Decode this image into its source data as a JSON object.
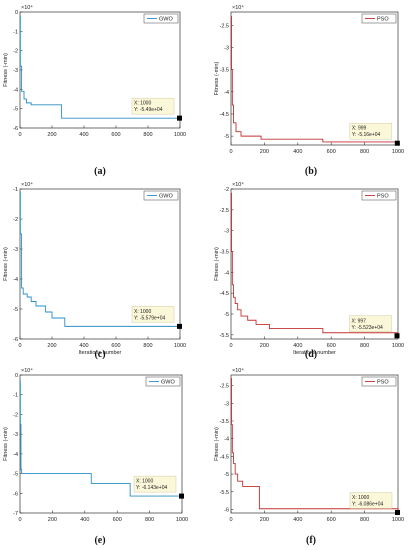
{
  "figure": {
    "captions": [
      "(a)",
      "(b)",
      "(c)",
      "(d)",
      "(e)",
      "(f)"
    ]
  },
  "chart_data": [
    {
      "type": "line",
      "panel": "(a)",
      "legend": "GWO",
      "color": "#2a8fc7",
      "ylabel": "Fitness (-min)",
      "xlabel": "",
      "exponent_label": "×10⁴",
      "xlim": [
        0,
        1000
      ],
      "ylim": [
        -6,
        0
      ],
      "xticks": [
        0,
        200,
        400,
        600,
        800,
        1000
      ],
      "yticks": [
        0,
        -1,
        -2,
        -3,
        -4,
        -5,
        -6
      ],
      "xtick_labels": [
        "0",
        "200",
        "400",
        "600",
        "800",
        "1000"
      ],
      "ytick_labels": [
        "0",
        "-1",
        "-2",
        "-3",
        "-4",
        "-5",
        "-6"
      ],
      "x": [
        0,
        2,
        10,
        25,
        40,
        70,
        260,
        1000
      ],
      "y": [
        -0.2,
        -2.8,
        -4.1,
        -4.5,
        -4.7,
        -4.8,
        -5.49,
        -5.49
      ],
      "datatip": {
        "x": 1000,
        "y": -5.49,
        "xtext": "X: 1000",
        "ytext": "Y: -5.49e+04"
      }
    },
    {
      "type": "line",
      "panel": "(b)",
      "legend": "PSO",
      "color": "#c43030",
      "ylabel": "Fitness (-min)",
      "xlabel": "",
      "exponent_label": "×10⁴",
      "xlim": [
        0,
        1000
      ],
      "ylim": [
        -5.2,
        -2.2
      ],
      "xticks": [
        0,
        200,
        400,
        600,
        800,
        1000
      ],
      "yticks": [
        -2.5,
        -3,
        -3.5,
        -4,
        -4.5,
        -5
      ],
      "xtick_labels": [
        "0",
        "200",
        "400",
        "600",
        "800",
        "1000"
      ],
      "ytick_labels": [
        "-2.5",
        "-3",
        "-3.5",
        "-4",
        "-4.5",
        "-5"
      ],
      "x": [
        0,
        3,
        8,
        15,
        30,
        60,
        180,
        550,
        999,
        1000
      ],
      "y": [
        -2.3,
        -3.5,
        -4.3,
        -4.7,
        -4.9,
        -5.0,
        -5.07,
        -5.13,
        -5.16,
        -5.16
      ],
      "datatip": {
        "x": 999,
        "y": -5.16,
        "xtext": "X: 999",
        "ytext": "Y: -5.16e+04"
      }
    },
    {
      "type": "line",
      "panel": "(c)",
      "legend": "GWO",
      "color": "#2a8fc7",
      "ylabel": "Fitness (-min)",
      "xlabel": "Iterations number",
      "exponent_label": "×10⁴",
      "xlim": [
        0,
        1000
      ],
      "ylim": [
        -6,
        -1
      ],
      "xticks": [
        0,
        200,
        400,
        600,
        800,
        1000
      ],
      "yticks": [
        -1,
        -2,
        -3,
        -4,
        -5,
        -6
      ],
      "xtick_labels": [
        "0",
        "200",
        "400",
        "600",
        "800",
        "1000"
      ],
      "ytick_labels": [
        "-1",
        "-2",
        "-3",
        "-4",
        "-5",
        "-6"
      ],
      "x": [
        0,
        2,
        10,
        20,
        45,
        70,
        100,
        160,
        200,
        280,
        1000
      ],
      "y": [
        -1.1,
        -2.5,
        -4.3,
        -4.5,
        -4.6,
        -4.75,
        -4.9,
        -5.1,
        -5.3,
        -5.579,
        -5.579
      ],
      "datatip": {
        "x": 1000,
        "y": -5.579,
        "xtext": "X: 1000",
        "ytext": "Y: -5.579e+04"
      }
    },
    {
      "type": "line",
      "panel": "(d)",
      "legend": "PSO",
      "color": "#c43030",
      "ylabel": "Fitness (-min)",
      "xlabel": "Iterations number",
      "exponent_label": "×10⁴",
      "xlim": [
        0,
        1000
      ],
      "ylim": [
        -5.6,
        -2
      ],
      "xticks": [
        0,
        200,
        400,
        600,
        800,
        1000
      ],
      "yticks": [
        -2,
        -2.5,
        -3,
        -3.5,
        -4,
        -4.5,
        -5,
        -5.5
      ],
      "xtick_labels": [
        "0",
        "200",
        "400",
        "600",
        "800",
        "1000"
      ],
      "ytick_labels": [
        "-2",
        "-2.5",
        "-3",
        "-3.5",
        "-4",
        "-4.5",
        "-5",
        "-5.5"
      ],
      "x": [
        0,
        3,
        8,
        15,
        25,
        40,
        60,
        100,
        150,
        230,
        550,
        997,
        1000
      ],
      "y": [
        -2.1,
        -3.5,
        -4.3,
        -4.6,
        -4.75,
        -4.9,
        -5.05,
        -5.15,
        -5.25,
        -5.35,
        -5.45,
        -5.523,
        -5.523
      ],
      "datatip": {
        "x": 997,
        "y": -5.523,
        "xtext": "X: 997",
        "ytext": "Y: -5.523e+04"
      }
    },
    {
      "type": "line",
      "panel": "(e)",
      "legend": "GWO",
      "color": "#2a8fc7",
      "ylabel": "Fitness (-min)",
      "xlabel": "",
      "exponent_label": "×10⁴",
      "xlim": [
        0,
        1000
      ],
      "ylim": [
        -7,
        0
      ],
      "xticks": [
        0,
        200,
        400,
        600,
        800,
        1000
      ],
      "yticks": [
        0,
        -1,
        -2,
        -3,
        -4,
        -5,
        -6,
        -7
      ],
      "xtick_labels": [
        "0",
        "200",
        "400",
        "600",
        "800",
        "1000"
      ],
      "ytick_labels": [
        "0",
        "-1",
        "-2",
        "-3",
        "-4",
        "-5",
        "-6",
        "-7"
      ],
      "x": [
        0,
        2,
        6,
        10,
        440,
        680,
        1000
      ],
      "y": [
        -0.3,
        -2.5,
        -4.8,
        -5.0,
        -5.5,
        -6.143,
        -6.143
      ],
      "datatip": {
        "x": 1000,
        "y": -6.143,
        "xtext": "X: 1000",
        "ytext": "Y: -6.143e+04"
      }
    },
    {
      "type": "line",
      "panel": "(f)",
      "legend": "PSO",
      "color": "#c43030",
      "ylabel": "Fitness (-min)",
      "xlabel": "",
      "exponent_label": "×10⁴",
      "xlim": [
        0,
        1000
      ],
      "ylim": [
        -6.1,
        -2.2
      ],
      "xticks": [
        0,
        200,
        400,
        600,
        800,
        1000
      ],
      "yticks": [
        -2.5,
        -3,
        -3.5,
        -4,
        -4.5,
        -5,
        -5.5,
        -6
      ],
      "xtick_labels": [
        "0",
        "200",
        "400",
        "600",
        "800",
        "1000"
      ],
      "ytick_labels": [
        "-2.5",
        "-3",
        "-3.5",
        "-4",
        "-4.5",
        "-5",
        "-5.5",
        "-6"
      ],
      "x": [
        0,
        3,
        8,
        15,
        25,
        40,
        70,
        170,
        1000
      ],
      "y": [
        -2.3,
        -3.6,
        -4.4,
        -4.7,
        -5.0,
        -5.2,
        -5.35,
        -5.98,
        -6.086
      ],
      "datatip": {
        "x": 1000,
        "y": -6.086,
        "xtext": "X: 1000",
        "ytext": "Y: -6.086e+04"
      }
    }
  ]
}
